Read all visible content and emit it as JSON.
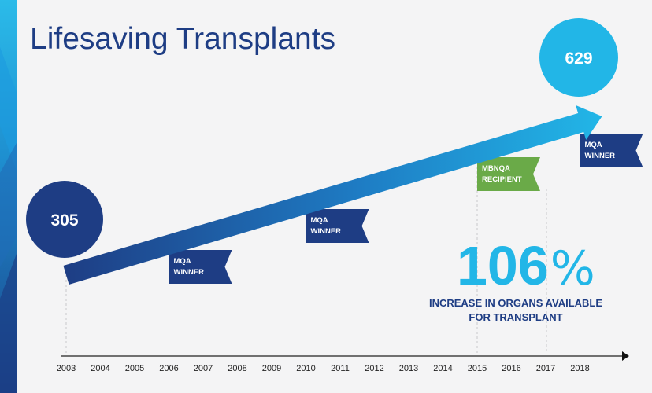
{
  "page_title": "Lifesaving Transplants",
  "chart_data": {
    "type": "line",
    "title": "Lifesaving Transplants",
    "xlabel": "",
    "ylabel": "",
    "x": [
      "2003",
      "2004",
      "2005",
      "2006",
      "2007",
      "2008",
      "2009",
      "2010",
      "2011",
      "2012",
      "2013",
      "2014",
      "2015",
      "2016",
      "2017",
      "2018"
    ],
    "series": [
      {
        "name": "Transplants",
        "points": [
          {
            "x": "2003",
            "y": 305
          },
          {
            "x": "2018",
            "y": 629
          }
        ]
      }
    ],
    "start_value": "305",
    "end_value": "629",
    "annotations": [
      {
        "year": "2006",
        "line1": "MQA",
        "line2": "WINNER",
        "color": "#1e3d84"
      },
      {
        "year": "2010",
        "line1": "MQA",
        "line2": "WINNER",
        "color": "#1e3d84"
      },
      {
        "year": "2015",
        "line1": "MBNQA",
        "line2": "RECIPIENT",
        "color": "#6aaa48"
      },
      {
        "year": "2018",
        "line1": "MQA",
        "line2": "WINNER",
        "color": "#1e3d84"
      }
    ],
    "highlight": {
      "value": "106",
      "unit": "%",
      "caption_line1": "INCREASE IN ORGANS AVAILABLE",
      "caption_line2": "FOR TRANSPLANT"
    }
  },
  "colors": {
    "navy": "#1e3d84",
    "cyan": "#22b6e7",
    "green": "#6aaa48",
    "background": "#f4f4f5"
  }
}
